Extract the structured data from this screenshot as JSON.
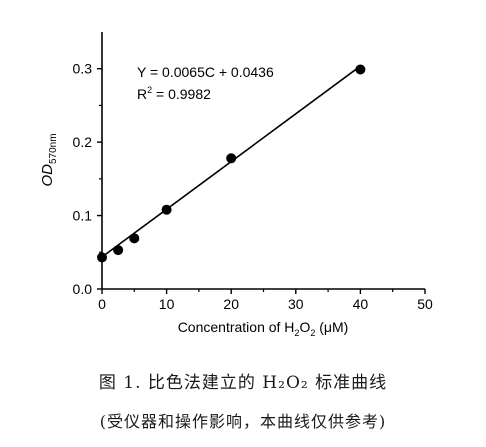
{
  "chart_data": {
    "type": "scatter",
    "xlabel_prefix": "Concentration of H",
    "xlabel_sub1": "2",
    "xlabel_mid": "O",
    "xlabel_sub2": "2",
    "xlabel_suffix": " (μM)",
    "ylabel_main": "OD",
    "ylabel_sub": "570nm",
    "xlim": [
      0,
      50
    ],
    "ylim": [
      0,
      0.35
    ],
    "x_ticks": [
      0,
      10,
      20,
      30,
      40,
      50
    ],
    "y_ticks": [
      0.0,
      0.1,
      0.2,
      0.3
    ],
    "y_tick_labels": [
      "0.0",
      "0.1",
      "0.2",
      "0.3"
    ],
    "series": [
      {
        "points": [
          {
            "x": 0,
            "y": 0.043
          },
          {
            "x": 2.5,
            "y": 0.053
          },
          {
            "x": 5,
            "y": 0.069
          },
          {
            "x": 10,
            "y": 0.108
          },
          {
            "x": 20,
            "y": 0.178
          },
          {
            "x": 40,
            "y": 0.299
          }
        ]
      }
    ],
    "fit": {
      "slope": 0.0065,
      "intercept": 0.0436,
      "x_range": [
        0,
        40
      ]
    },
    "equation": "Y = 0.0065C + 0.0436",
    "r2_label": "R",
    "r2_sup": "2",
    "r2_value": " = 0.9982"
  },
  "caption": {
    "figure": "图 1. 比色法建立的 H₂O₂ 标准曲线",
    "note": "(受仪器和操作影响，本曲线仅供参考)"
  }
}
